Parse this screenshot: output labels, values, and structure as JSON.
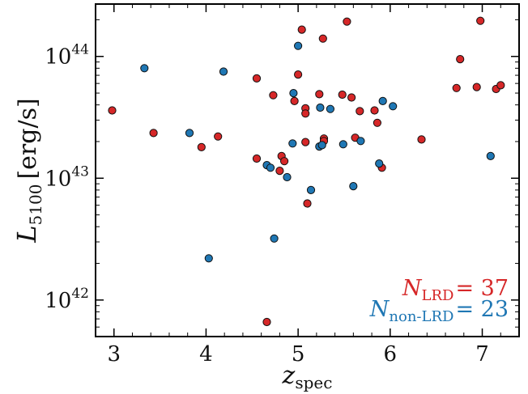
{
  "chart_data": {
    "type": "scatter",
    "xlabel": {
      "symbol": "z",
      "subscript": "spec"
    },
    "ylabel": {
      "symbol": "L",
      "subscript": "5100",
      "unit": "[erg/s]"
    },
    "xlim": [
      2.8,
      7.4
    ],
    "ylim_log10": [
      41.7,
      44.43
    ],
    "y_scale": "log",
    "x_ticks": [
      3,
      4,
      5,
      6,
      7
    ],
    "y_ticks": [
      {
        "value": 1e+42,
        "base": "10",
        "exp": "42"
      },
      {
        "value": 1e+43,
        "base": "10",
        "exp": "43"
      },
      {
        "value": 1e+44,
        "base": "10",
        "exp": "44"
      }
    ],
    "grid": false,
    "counts": [
      {
        "symbol": "N",
        "subscript": "LRD",
        "eq": "= 37",
        "color": "#d62728"
      },
      {
        "symbol": "N",
        "subscript": "non-LRD",
        "eq": "= 23",
        "color": "#1f77b4"
      }
    ],
    "series": [
      {
        "color": "#d62728",
        "points": [
          [
            2.98,
            3.6e+43
          ],
          [
            3.43,
            2.35e+43
          ],
          [
            3.95,
            1.8e+43
          ],
          [
            4.13,
            2.2e+43
          ],
          [
            4.55,
            6.6e+43
          ],
          [
            4.55,
            1.45e+43
          ],
          [
            4.66,
            6.6e+41
          ],
          [
            4.73,
            4.8e+43
          ],
          [
            4.8,
            1.15e+43
          ],
          [
            4.82,
            1.52e+43
          ],
          [
            4.85,
            1.38e+43
          ],
          [
            4.96,
            4.3e+43
          ],
          [
            5.0,
            7.1e+43
          ],
          [
            5.04,
            1.66e+44
          ],
          [
            5.08,
            3.75e+43
          ],
          [
            5.08,
            3.4e+43
          ],
          [
            5.08,
            1.98e+43
          ],
          [
            5.1,
            6.2e+42
          ],
          [
            5.23,
            4.9e+43
          ],
          [
            5.27,
            1.4e+44
          ],
          [
            5.28,
            2.12e+43
          ],
          [
            5.28,
            2.02e+43
          ],
          [
            5.48,
            4.85e+43
          ],
          [
            5.53,
            1.93e+44
          ],
          [
            5.58,
            4.6e+43
          ],
          [
            5.62,
            2.15e+43
          ],
          [
            5.67,
            3.55e+43
          ],
          [
            5.83,
            3.6e+43
          ],
          [
            5.86,
            2.85e+43
          ],
          [
            5.91,
            1.22e+43
          ],
          [
            6.34,
            2.08e+43
          ],
          [
            6.72,
            5.5e+43
          ],
          [
            6.76,
            9.5e+43
          ],
          [
            6.94,
            5.6e+43
          ],
          [
            6.98,
            1.96e+44
          ],
          [
            7.15,
            5.4e+43
          ],
          [
            7.2,
            5.8e+43
          ]
        ]
      },
      {
        "color": "#1f77b4",
        "points": [
          [
            3.33,
            8e+43
          ],
          [
            3.82,
            2.35e+43
          ],
          [
            4.03,
            2.2e+42
          ],
          [
            4.19,
            7.5e+43
          ],
          [
            4.66,
            1.28e+43
          ],
          [
            4.7,
            1.22e+43
          ],
          [
            4.74,
            3.2e+42
          ],
          [
            4.88,
            1.02e+43
          ],
          [
            4.94,
            1.93e+43
          ],
          [
            4.95,
            5e+43
          ],
          [
            5.0,
            1.22e+44
          ],
          [
            5.14,
            8e+42
          ],
          [
            5.23,
            1.82e+43
          ],
          [
            5.24,
            3.8e+43
          ],
          [
            5.26,
            1.87e+43
          ],
          [
            5.35,
            3.7e+43
          ],
          [
            5.49,
            1.9e+43
          ],
          [
            5.6,
            8.6e+42
          ],
          [
            5.68,
            2.02e+43
          ],
          [
            5.88,
            1.32e+43
          ],
          [
            5.92,
            4.3e+43
          ],
          [
            6.03,
            3.9e+43
          ],
          [
            7.09,
            1.52e+43
          ]
        ]
      }
    ]
  }
}
